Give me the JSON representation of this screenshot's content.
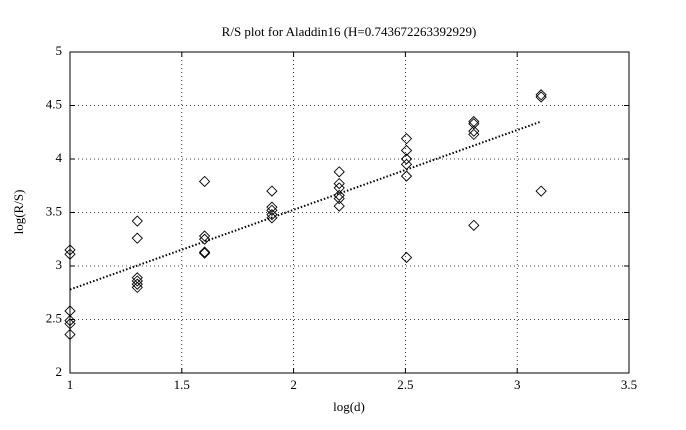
{
  "chart_data": {
    "type": "scatter",
    "title": "R/S plot for Aladdin16 (H=0.743672263392929)",
    "x_label": "log(d)",
    "y_label": "log(R/S)",
    "xlim": [
      1,
      3.5
    ],
    "xticks": [
      1,
      1.5,
      2,
      2.5,
      3,
      3.5
    ],
    "ylim": [
      2,
      5
    ],
    "yticks": [
      2,
      2.5,
      3,
      3.5,
      4,
      4.5,
      5
    ],
    "grid": true,
    "series": [
      {
        "type": "scatter",
        "marker": "diamond",
        "color": "#000000",
        "x": [
          1,
          1,
          1,
          1,
          1,
          1,
          1.301,
          1.301,
          1.301,
          1.301,
          1.301,
          1.301,
          1.602,
          1.602,
          1.602,
          1.602,
          1.602,
          1.903,
          1.903,
          1.903,
          1.903,
          1.903,
          2.204,
          2.204,
          2.204,
          2.204,
          2.204,
          2.204,
          2.505,
          2.505,
          2.505,
          2.505,
          2.505,
          2.505,
          2.806,
          2.806,
          2.806,
          2.806,
          2.806,
          3.107,
          3.107,
          3.107
        ],
        "values": [
          3.15,
          3.11,
          2.58,
          2.49,
          2.46,
          2.36,
          3.42,
          3.26,
          2.89,
          2.86,
          2.83,
          2.8,
          3.79,
          3.28,
          3.25,
          3.13,
          3.12,
          3.7,
          3.55,
          3.52,
          3.48,
          3.45,
          3.88,
          3.77,
          3.73,
          3.66,
          3.63,
          3.56,
          4.19,
          4.08,
          4.0,
          3.95,
          3.84,
          3.08,
          4.35,
          4.33,
          4.26,
          4.23,
          3.38,
          4.6,
          4.58,
          3.7
        ]
      },
      {
        "type": "line",
        "style": "dotted",
        "color": "#000000",
        "x": [
          1,
          3.107
        ],
        "values": [
          2.78,
          4.35
        ]
      }
    ]
  }
}
